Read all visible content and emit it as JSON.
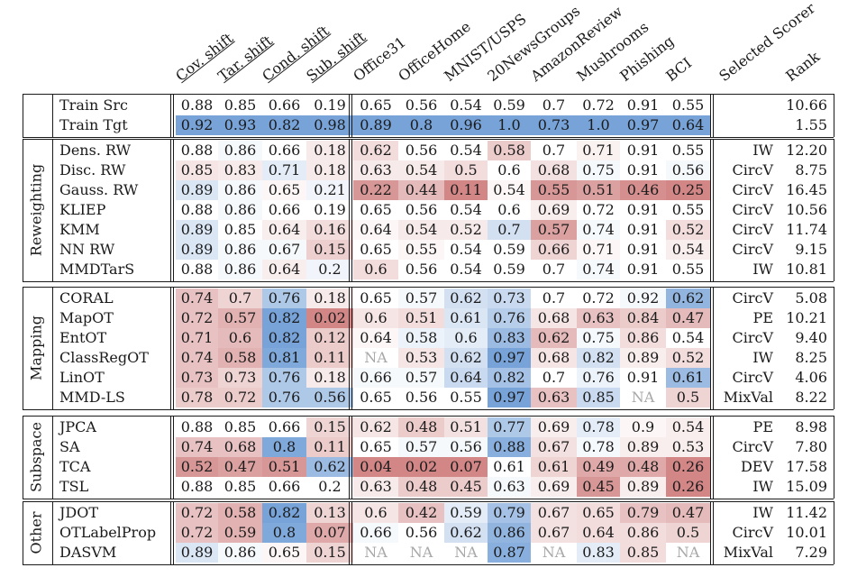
{
  "headers": {
    "shift": [
      "Cov. shift",
      "Tar. shift",
      "Cond. shift",
      "Sub. shift"
    ],
    "datasets": [
      "Office31",
      "OfficeHome",
      "MNIST/USPS",
      "20NewsGroups",
      "AmazonReview",
      "Mushrooms",
      "Phishing",
      "BCI"
    ],
    "selected_scorer": "Selected Scorer",
    "rank": "Rank"
  },
  "colors": {
    "blue_strong": "#5b8fd0",
    "red_strong": "#c46262",
    "na_text": "#a8a8a8"
  },
  "groups": [
    {
      "label": "",
      "rows": [
        {
          "name": "Train Src",
          "values": [
            "0.88",
            "0.85",
            "0.66",
            "0.19",
            "0.65",
            "0.56",
            "0.54",
            "0.59",
            "0.7",
            "0.72",
            "0.91",
            "0.55"
          ],
          "tints": [
            0,
            0,
            0,
            0,
            0,
            0,
            0,
            0,
            0,
            0,
            0,
            0
          ],
          "scorer": "",
          "rank": "10.66"
        },
        {
          "name": "Train Tgt",
          "values": [
            "0.92",
            "0.93",
            "0.82",
            "0.98",
            "0.89",
            "0.8",
            "0.96",
            "1.0",
            "0.73",
            "1.0",
            "0.97",
            "0.64"
          ],
          "tints": [
            0.75,
            0.75,
            0.75,
            0.75,
            0.75,
            0.75,
            0.75,
            0.75,
            0.75,
            0.75,
            0.75,
            0.75
          ],
          "scorer": "",
          "rank": "1.55"
        }
      ]
    },
    {
      "label": "Reweighting",
      "rows": [
        {
          "name": "Dens. RW",
          "values": [
            "0.88",
            "0.86",
            "0.66",
            "0.18",
            "0.62",
            "0.56",
            "0.54",
            "0.58",
            "0.7",
            "0.71",
            "0.91",
            "0.55"
          ],
          "tints": [
            0,
            0.05,
            0,
            -0.12,
            -0.2,
            0,
            0,
            -0.3,
            0,
            -0.08,
            0,
            0
          ],
          "scorer": "IW",
          "rank": "12.20"
        },
        {
          "name": "Disc. RW",
          "values": [
            "0.85",
            "0.83",
            "0.71",
            "0.18",
            "0.63",
            "0.54",
            "0.5",
            "0.6",
            "0.68",
            "0.75",
            "0.91",
            "0.56"
          ],
          "tints": [
            -0.15,
            -0.12,
            0.15,
            -0.12,
            -0.12,
            -0.12,
            -0.2,
            0,
            -0.18,
            0.05,
            0,
            0.05
          ],
          "scorer": "CircV",
          "rank": "8.75"
        },
        {
          "name": "Gauss. RW",
          "values": [
            "0.89",
            "0.86",
            "0.65",
            "0.21",
            "0.22",
            "0.44",
            "0.11",
            "0.54",
            "0.55",
            "0.51",
            "0.46",
            "0.25"
          ],
          "tints": [
            0.2,
            0.05,
            -0.05,
            0.08,
            -0.6,
            -0.4,
            -0.7,
            -0.05,
            -0.6,
            -0.55,
            -0.65,
            -0.7
          ],
          "scorer": "CircV",
          "rank": "16.45"
        },
        {
          "name": "KLIEP",
          "values": [
            "0.88",
            "0.86",
            "0.66",
            "0.19",
            "0.65",
            "0.56",
            "0.54",
            "0.6",
            "0.69",
            "0.72",
            "0.91",
            "0.55"
          ],
          "tints": [
            0,
            0.05,
            0,
            0,
            0,
            0,
            0,
            0,
            -0.1,
            0,
            0,
            0
          ],
          "scorer": "CircV",
          "rank": "10.56"
        },
        {
          "name": "KMM",
          "values": [
            "0.89",
            "0.85",
            "0.64",
            "0.16",
            "0.64",
            "0.54",
            "0.52",
            "0.7",
            "0.57",
            "0.74",
            "0.91",
            "0.52"
          ],
          "tints": [
            0.2,
            0,
            -0.1,
            -0.2,
            -0.05,
            -0.12,
            -0.12,
            0.25,
            -0.55,
            0.05,
            0,
            -0.2
          ],
          "scorer": "CircV",
          "rank": "11.74"
        },
        {
          "name": "NN RW",
          "values": [
            "0.89",
            "0.86",
            "0.67",
            "0.15",
            "0.65",
            "0.55",
            "0.54",
            "0.59",
            "0.66",
            "0.71",
            "0.91",
            "0.54"
          ],
          "tints": [
            0.2,
            0.05,
            0.05,
            -0.28,
            0,
            -0.05,
            0,
            0,
            -0.25,
            -0.05,
            0,
            -0.1
          ],
          "scorer": "CircV",
          "rank": "9.15"
        },
        {
          "name": "MMDTarS",
          "values": [
            "0.88",
            "0.86",
            "0.64",
            "0.2",
            "0.6",
            "0.56",
            "0.54",
            "0.59",
            "0.7",
            "0.74",
            "0.91",
            "0.55"
          ],
          "tints": [
            0,
            0.05,
            -0.1,
            0.08,
            -0.2,
            0,
            0,
            0,
            0,
            0.05,
            0,
            0
          ],
          "scorer": "IW",
          "rank": "10.81"
        }
      ]
    },
    {
      "label": "Mapping",
      "rows": [
        {
          "name": "CORAL",
          "values": [
            "0.74",
            "0.7",
            "0.76",
            "0.18",
            "0.65",
            "0.57",
            "0.62",
            "0.73",
            "0.7",
            "0.72",
            "0.92",
            "0.62"
          ],
          "tints": [
            -0.35,
            -0.25,
            0.45,
            -0.12,
            0,
            0.05,
            0.25,
            0.3,
            0,
            0,
            0.05,
            0.6
          ],
          "scorer": "CircV",
          "rank": "5.08"
        },
        {
          "name": "MapOT",
          "values": [
            "0.72",
            "0.57",
            "0.82",
            "0.02",
            "0.6",
            "0.51",
            "0.61",
            "0.76",
            "0.68",
            "0.63",
            "0.84",
            "0.47"
          ],
          "tints": [
            -0.35,
            -0.45,
            0.75,
            -0.7,
            -0.15,
            -0.2,
            0.2,
            0.4,
            -0.15,
            -0.35,
            -0.3,
            -0.4
          ],
          "scorer": "PE",
          "rank": "10.21"
        },
        {
          "name": "EntOT",
          "values": [
            "0.71",
            "0.6",
            "0.82",
            "0.12",
            "0.64",
            "0.58",
            "0.6",
            "0.83",
            "0.62",
            "0.75",
            "0.86",
            "0.54"
          ],
          "tints": [
            -0.35,
            -0.4,
            0.75,
            -0.3,
            -0.05,
            0.1,
            0.15,
            0.55,
            -0.4,
            0.05,
            -0.2,
            0
          ],
          "scorer": "CircV",
          "rank": "9.40"
        },
        {
          "name": "ClassRegOT",
          "values": [
            "0.74",
            "0.58",
            "0.81",
            "0.11",
            "NA",
            "0.53",
            "0.62",
            "0.97",
            "0.68",
            "0.82",
            "0.89",
            "0.52"
          ],
          "tints": [
            -0.35,
            -0.45,
            0.7,
            -0.3,
            0,
            -0.15,
            0.25,
            0.75,
            -0.15,
            0.25,
            -0.1,
            -0.2
          ],
          "scorer": "IW",
          "rank": "8.25"
        },
        {
          "name": "LinOT",
          "values": [
            "0.73",
            "0.73",
            "0.76",
            "0.18",
            "0.66",
            "0.57",
            "0.64",
            "0.82",
            "0.7",
            "0.76",
            "0.91",
            "0.61"
          ],
          "tints": [
            -0.35,
            -0.25,
            0.45,
            -0.12,
            0.05,
            0.05,
            0.3,
            0.5,
            0,
            0.1,
            0,
            0.55
          ],
          "scorer": "CircV",
          "rank": "4.06"
        },
        {
          "name": "MMD-LS",
          "values": [
            "0.78",
            "0.72",
            "0.76",
            "0.56",
            "0.65",
            "0.56",
            "0.55",
            "0.97",
            "0.63",
            "0.85",
            "NA",
            "0.5"
          ],
          "tints": [
            -0.3,
            -0.3,
            0.45,
            0.45,
            0,
            0,
            0,
            0.75,
            -0.35,
            0.3,
            0,
            -0.25
          ],
          "scorer": "MixVal",
          "rank": "8.22"
        }
      ]
    },
    {
      "label": "Subspace",
      "rows": [
        {
          "name": "JPCA",
          "values": [
            "0.88",
            "0.85",
            "0.66",
            "0.15",
            "0.62",
            "0.48",
            "0.51",
            "0.77",
            "0.69",
            "0.78",
            "0.9",
            "0.54"
          ],
          "tints": [
            0,
            0,
            0,
            -0.25,
            -0.15,
            -0.3,
            -0.18,
            0.45,
            -0.1,
            0.15,
            -0.05,
            -0.1
          ],
          "scorer": "PE",
          "rank": "8.98"
        },
        {
          "name": "SA",
          "values": [
            "0.74",
            "0.68",
            "0.8",
            "0.11",
            "0.65",
            "0.57",
            "0.56",
            "0.88",
            "0.67",
            "0.78",
            "0.89",
            "0.53"
          ],
          "tints": [
            -0.35,
            -0.35,
            0.7,
            -0.3,
            0,
            0.05,
            0.05,
            0.65,
            -0.18,
            0.05,
            -0.1,
            -0.1
          ],
          "scorer": "CircV",
          "rank": "7.80"
        },
        {
          "name": "TCA",
          "values": [
            "0.52",
            "0.47",
            "0.51",
            "0.62",
            "0.04",
            "0.02",
            "0.07",
            "0.61",
            "0.61",
            "0.49",
            "0.48",
            "0.26"
          ],
          "tints": [
            -0.6,
            -0.55,
            -0.6,
            0.55,
            -0.7,
            -0.7,
            -0.7,
            0,
            -0.25,
            -0.5,
            -0.5,
            -0.7
          ],
          "scorer": "DEV",
          "rank": "17.58"
        },
        {
          "name": "TSL",
          "values": [
            "0.88",
            "0.85",
            "0.66",
            "0.2",
            "0.63",
            "0.48",
            "0.45",
            "0.63",
            "0.69",
            "0.45",
            "0.89",
            "0.26"
          ],
          "tints": [
            0,
            0,
            0,
            0,
            -0.12,
            -0.3,
            -0.3,
            0.05,
            -0.1,
            -0.6,
            -0.1,
            -0.7
          ],
          "scorer": "IW",
          "rank": "15.09"
        }
      ]
    },
    {
      "label": "Other",
      "rows": [
        {
          "name": "JDOT",
          "values": [
            "0.72",
            "0.58",
            "0.82",
            "0.13",
            "0.6",
            "0.42",
            "0.59",
            "0.79",
            "0.67",
            "0.65",
            "0.79",
            "0.47"
          ],
          "tints": [
            -0.35,
            -0.45,
            0.75,
            -0.25,
            -0.15,
            -0.35,
            0.15,
            0.5,
            -0.18,
            -0.2,
            -0.35,
            -0.4
          ],
          "scorer": "IW",
          "rank": "11.42"
        },
        {
          "name": "OTLabelProp",
          "values": [
            "0.72",
            "0.59",
            "0.8",
            "0.07",
            "0.66",
            "0.56",
            "0.62",
            "0.86",
            "0.67",
            "0.64",
            "0.86",
            "0.5"
          ],
          "tints": [
            -0.35,
            -0.45,
            0.7,
            -0.5,
            0.05,
            0,
            0.25,
            0.6,
            -0.18,
            -0.2,
            -0.2,
            -0.25
          ],
          "scorer": "CircV",
          "rank": "10.01"
        },
        {
          "name": "DASVM",
          "values": [
            "0.89",
            "0.86",
            "0.65",
            "0.15",
            "NA",
            "NA",
            "NA",
            "0.87",
            "NA",
            "0.83",
            "0.85",
            "NA"
          ],
          "tints": [
            0.2,
            0.05,
            -0.05,
            -0.25,
            0,
            0,
            0,
            0.65,
            0,
            0.15,
            -0.2,
            0
          ],
          "scorer": "MixVal",
          "rank": "7.29"
        }
      ]
    }
  ]
}
